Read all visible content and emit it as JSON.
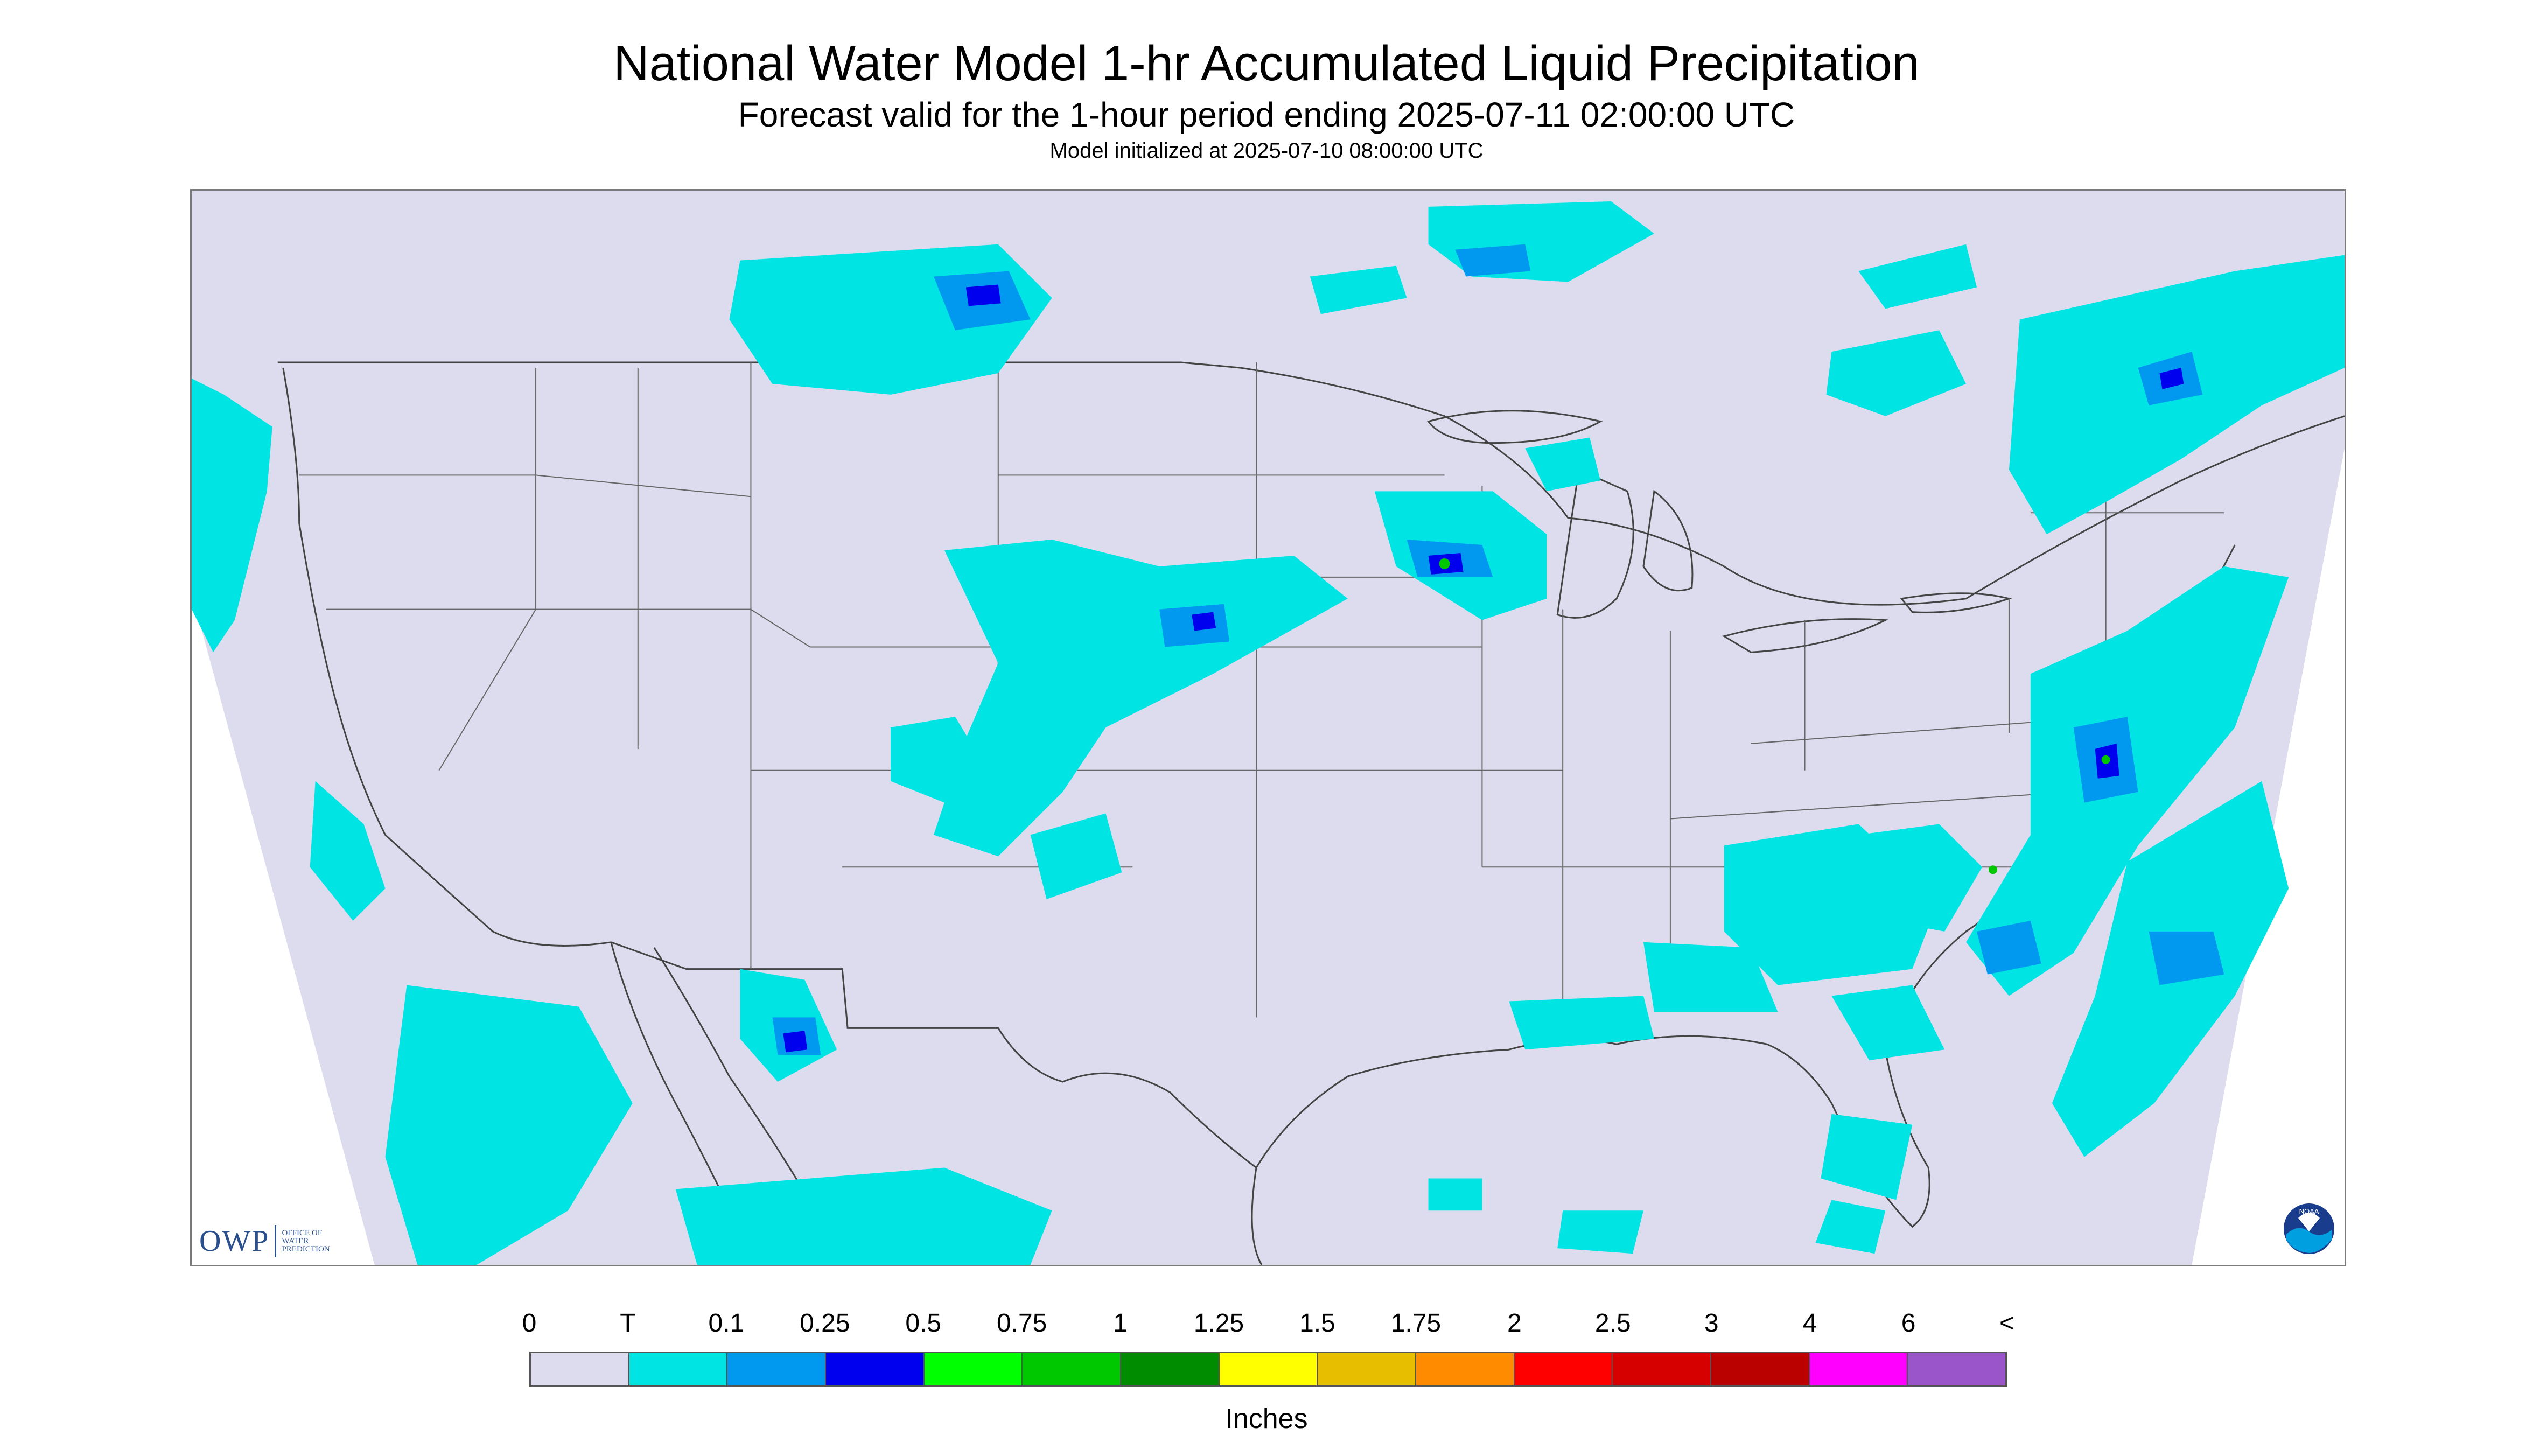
{
  "header": {
    "title": "National Water Model 1-hr Accumulated Liquid Precipitation",
    "subtitle": "Forecast valid for the 1-hour period ending 2025-07-11 02:00:00 UTC",
    "init_line": "Model initialized at 2025-07-10 08:00:00 UTC"
  },
  "logos": {
    "owp_mark": "OWP",
    "owp_text_lines": [
      "OFFICE OF",
      "WATER",
      "PREDICTION"
    ],
    "noaa_text": "NOAA",
    "noaa_icon": "noaa-seal-icon"
  },
  "legend": {
    "labels": [
      "0",
      "T",
      "0.1",
      "0.25",
      "0.5",
      "0.75",
      "1",
      "1.25",
      "1.5",
      "1.75",
      "2",
      "2.5",
      "3",
      "4",
      "6",
      "<"
    ],
    "colors": [
      "#dcdcee",
      "#00e4e4",
      "#0099ef",
      "#0000ef",
      "#00ff00",
      "#00c800",
      "#008c00",
      "#ffff00",
      "#e7bf00",
      "#ff8c00",
      "#ff0000",
      "#d70000",
      "#bb0000",
      "#ff00ff",
      "#9955c9"
    ],
    "unit": "Inches"
  },
  "map_colors": {
    "land": "#dcdcee",
    "outside": "#ffffff",
    "borders": "#444444"
  }
}
